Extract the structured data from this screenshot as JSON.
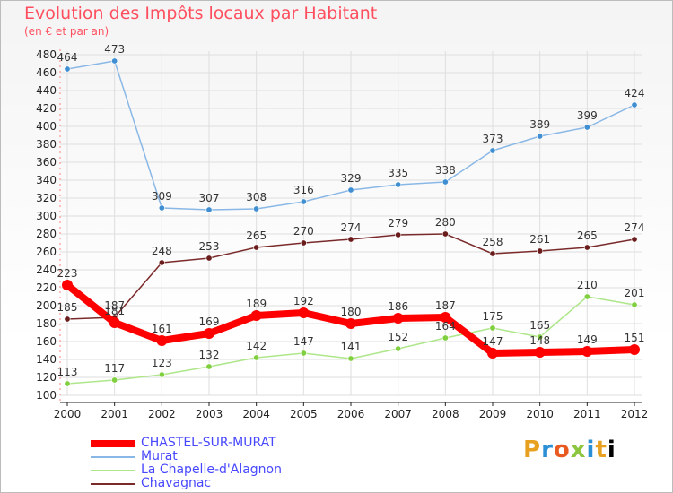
{
  "chart_data": {
    "type": "line",
    "title": "Evolution des Impôts locaux par Habitant",
    "subtitle": "(en € et par an)",
    "x": [
      "2000",
      "2001",
      "2002",
      "2003",
      "2004",
      "2005",
      "2006",
      "2007",
      "2008",
      "2009",
      "2010",
      "2011",
      "2012"
    ],
    "ylim": [
      100,
      480
    ],
    "yticks": [
      "100",
      "120",
      "140",
      "160",
      "180",
      "200",
      "220",
      "240",
      "260",
      "280",
      "300",
      "320",
      "340",
      "360",
      "380",
      "400",
      "420",
      "440",
      "460",
      "480"
    ],
    "grid": true,
    "legend_position": "bottom-left",
    "series": [
      {
        "name": "CHASTEL-SUR-MURAT",
        "color": "#ff0000",
        "values": [
          223,
          181,
          161,
          169,
          189,
          192,
          180,
          186,
          187,
          147,
          148,
          149,
          151
        ]
      },
      {
        "name": "Murat",
        "color": "#8ab8e6",
        "marker": "#3f8fd2",
        "values": [
          464,
          473,
          309,
          307,
          308,
          316,
          329,
          335,
          338,
          373,
          389,
          399,
          424
        ]
      },
      {
        "name": "La Chapelle-d'Alagnon",
        "color": "#aee68a",
        "marker": "#7fcf3f",
        "values": [
          113,
          117,
          123,
          132,
          142,
          147,
          141,
          152,
          164,
          175,
          165,
          210,
          201
        ]
      },
      {
        "name": "Chavagnac",
        "color": "#7a2a2a",
        "marker": "#6a1c1c",
        "values": [
          185,
          187,
          248,
          253,
          265,
          270,
          274,
          279,
          280,
          258,
          261,
          265,
          274
        ]
      }
    ]
  },
  "brand": {
    "letters": [
      "P",
      "r",
      "o",
      "x",
      "i",
      "t",
      "i"
    ]
  }
}
